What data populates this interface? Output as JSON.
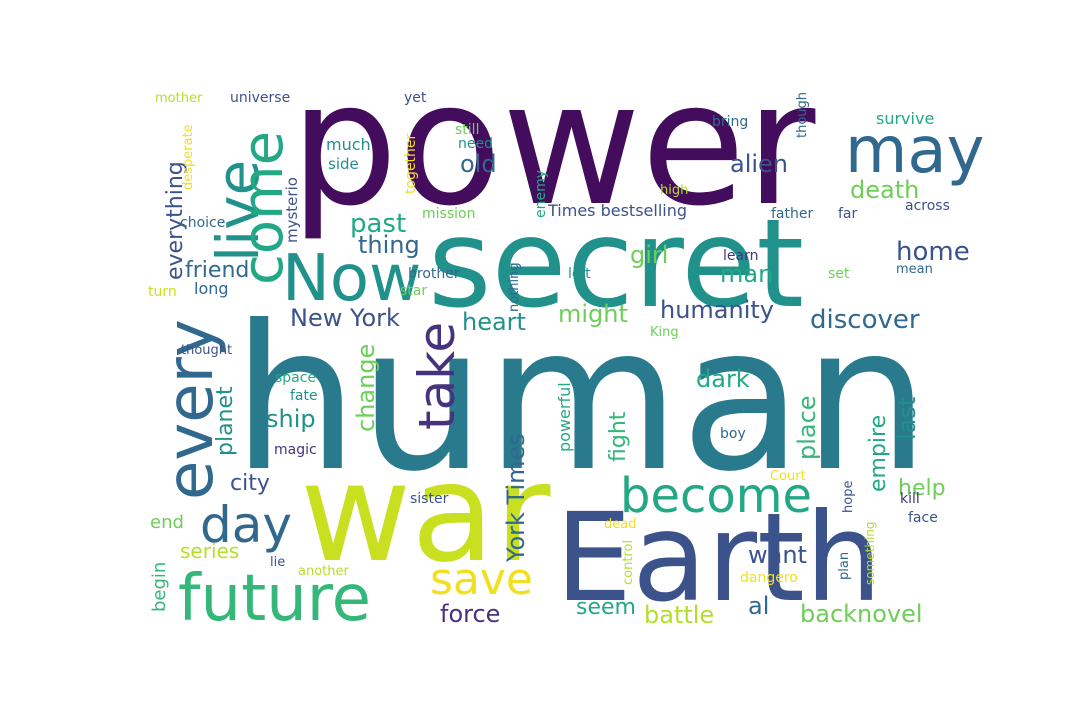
{
  "palette": {
    "dark_purple": "#440c5c",
    "purple": "#46337e",
    "indigo": "#3b528b",
    "blue_teal": "#31688e",
    "teal": "#2a7a8e",
    "teal_green": "#21918c",
    "green_teal": "#22a884",
    "green": "#35b779",
    "light_green": "#6ece58",
    "yellow_green": "#b5de2b",
    "lime": "#c8e020",
    "yellow": "#f0e020"
  },
  "words": [
    {
      "id": "power",
      "text": "power"
    },
    {
      "id": "human",
      "text": "human"
    },
    {
      "id": "secret",
      "text": "secret"
    },
    {
      "id": "war",
      "text": "war"
    },
    {
      "id": "earth",
      "text": "Earth"
    },
    {
      "id": "now",
      "text": "Now"
    },
    {
      "id": "future",
      "text": "future"
    },
    {
      "id": "may",
      "text": "may"
    },
    {
      "id": "live",
      "text": "live"
    },
    {
      "id": "come",
      "text": "come"
    },
    {
      "id": "every",
      "text": "every"
    },
    {
      "id": "take",
      "text": "take"
    },
    {
      "id": "become",
      "text": "become"
    },
    {
      "id": "day",
      "text": "day"
    },
    {
      "id": "save",
      "text": "save"
    },
    {
      "id": "york-times",
      "text": "York Times"
    },
    {
      "id": "new-york",
      "text": "New York"
    },
    {
      "id": "everything",
      "text": "everything"
    },
    {
      "id": "humanity",
      "text": "humanity"
    },
    {
      "id": "backnovel",
      "text": "backnovel"
    },
    {
      "id": "discover",
      "text": "discover"
    },
    {
      "id": "friend",
      "text": "friend"
    },
    {
      "id": "past",
      "text": "past"
    },
    {
      "id": "thing",
      "text": "thing"
    },
    {
      "id": "old",
      "text": "old"
    },
    {
      "id": "alien",
      "text": "alien"
    },
    {
      "id": "death",
      "text": "death"
    },
    {
      "id": "girl",
      "text": "girl"
    },
    {
      "id": "home",
      "text": "home"
    },
    {
      "id": "man",
      "text": "man"
    },
    {
      "id": "might",
      "text": "might"
    },
    {
      "id": "heart",
      "text": "heart"
    },
    {
      "id": "dark",
      "text": "dark"
    },
    {
      "id": "change",
      "text": "change"
    },
    {
      "id": "ship",
      "text": "ship"
    },
    {
      "id": "planet",
      "text": "planet"
    },
    {
      "id": "place",
      "text": "place"
    },
    {
      "id": "last",
      "text": "last"
    },
    {
      "id": "empire",
      "text": "empire"
    },
    {
      "id": "fight",
      "text": "fight"
    },
    {
      "id": "help",
      "text": "help"
    },
    {
      "id": "city",
      "text": "city"
    },
    {
      "id": "want",
      "text": "want"
    },
    {
      "id": "force",
      "text": "force"
    },
    {
      "id": "battle",
      "text": "battle"
    },
    {
      "id": "seem",
      "text": "seem"
    },
    {
      "id": "al",
      "text": "al"
    },
    {
      "id": "series",
      "text": "series"
    },
    {
      "id": "end",
      "text": "end"
    },
    {
      "id": "begin",
      "text": "begin"
    },
    {
      "id": "times-bestselling",
      "text": "Times bestselling"
    },
    {
      "id": "powerful",
      "text": "powerful"
    },
    {
      "id": "mysterio",
      "text": "mysterio"
    },
    {
      "id": "long",
      "text": "long"
    },
    {
      "id": "much",
      "text": "much"
    },
    {
      "id": "side",
      "text": "side"
    },
    {
      "id": "universe",
      "text": "universe"
    },
    {
      "id": "mother",
      "text": "mother"
    },
    {
      "id": "desperate",
      "text": "desperate"
    },
    {
      "id": "choice",
      "text": "choice"
    },
    {
      "id": "turn",
      "text": "turn"
    },
    {
      "id": "yet",
      "text": "yet"
    },
    {
      "id": "still",
      "text": "still"
    },
    {
      "id": "need",
      "text": "need"
    },
    {
      "id": "together",
      "text": "together"
    },
    {
      "id": "mission",
      "text": "mission"
    },
    {
      "id": "enemy",
      "text": "enemy"
    },
    {
      "id": "high",
      "text": "high"
    },
    {
      "id": "bring",
      "text": "bring"
    },
    {
      "id": "though",
      "text": "though"
    },
    {
      "id": "survive",
      "text": "survive"
    },
    {
      "id": "father",
      "text": "father"
    },
    {
      "id": "far",
      "text": "far"
    },
    {
      "id": "across",
      "text": "across"
    },
    {
      "id": "learn",
      "text": "learn"
    },
    {
      "id": "set",
      "text": "set"
    },
    {
      "id": "mean",
      "text": "mean"
    },
    {
      "id": "left",
      "text": "left"
    },
    {
      "id": "brother",
      "text": "brother"
    },
    {
      "id": "star",
      "text": "star"
    },
    {
      "id": "nothing",
      "text": "nothing"
    },
    {
      "id": "king",
      "text": "King"
    },
    {
      "id": "thought",
      "text": "thought"
    },
    {
      "id": "space",
      "text": "space"
    },
    {
      "id": "fate",
      "text": "fate"
    },
    {
      "id": "magic",
      "text": "magic"
    },
    {
      "id": "boy",
      "text": "boy"
    },
    {
      "id": "court",
      "text": "Court"
    },
    {
      "id": "kill",
      "text": "kill"
    },
    {
      "id": "hope",
      "text": "hope"
    },
    {
      "id": "face",
      "text": "face"
    },
    {
      "id": "sister",
      "text": "sister"
    },
    {
      "id": "lie",
      "text": "lie"
    },
    {
      "id": "another",
      "text": "another"
    },
    {
      "id": "dead",
      "text": "dead"
    },
    {
      "id": "control",
      "text": "control"
    },
    {
      "id": "dangero",
      "text": "dangero"
    },
    {
      "id": "plan",
      "text": "plan"
    },
    {
      "id": "something",
      "text": "something"
    }
  ]
}
